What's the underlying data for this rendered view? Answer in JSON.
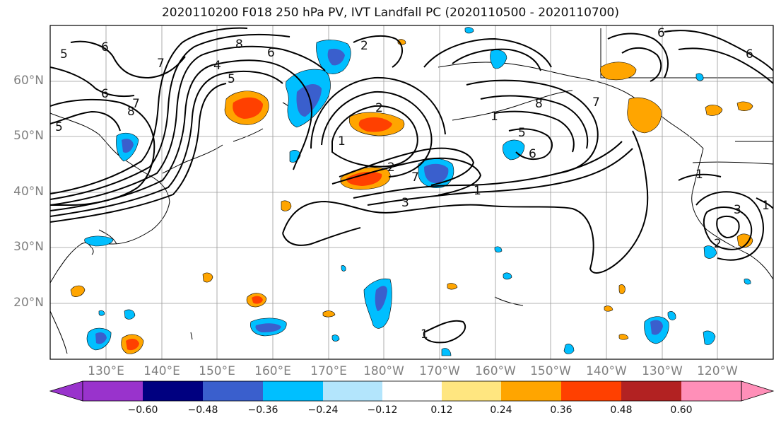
{
  "title": "2020110200 F018 250 hPa PV, IVT Landfall PC (2020110500 - 2020110700)",
  "lat_labels": [
    "60°N",
    "50°N",
    "40°N",
    "30°N",
    "20°N"
  ],
  "lon_labels": [
    "130°E",
    "140°E",
    "150°E",
    "160°E",
    "170°E",
    "180°W",
    "170°W",
    "160°W",
    "150°W",
    "140°W",
    "130°W",
    "120°W"
  ],
  "colorbar": {
    "colors": [
      "#9933cc",
      "#000080",
      "#3a5fcd",
      "#00bfff",
      "#b3e5fc",
      "#ffffff",
      "#ffffff",
      "#ffe680",
      "#ffa500",
      "#ff4000",
      "#b22222",
      "#ff8fb8"
    ],
    "tick_labels": [
      "−0.60",
      "−0.48",
      "−0.36",
      "−0.24",
      "−0.12",
      "0.12",
      "0.24",
      "0.36",
      "0.48",
      "0.60"
    ]
  },
  "contour_labels": [
    "4",
    "5",
    "6",
    "8",
    "7",
    "6",
    "8",
    "7",
    "6",
    "5",
    "2",
    "2",
    "1",
    "2",
    "7",
    "1",
    "8",
    "5",
    "6",
    "7",
    "3",
    "1",
    "6",
    "1",
    "2",
    "3",
    "1",
    "1",
    "5",
    "6"
  ]
}
